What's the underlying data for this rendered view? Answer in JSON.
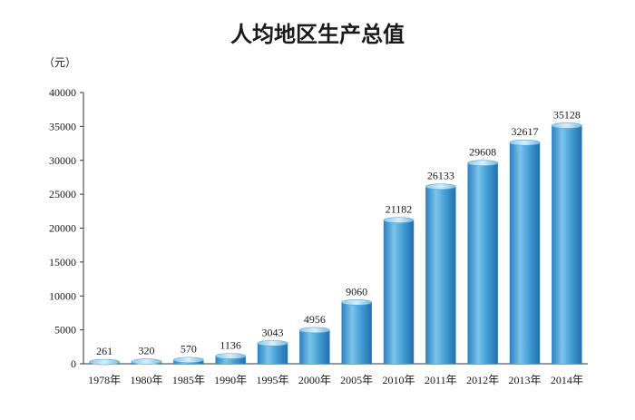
{
  "chart_data": {
    "type": "bar",
    "title": "人均地区生产总值",
    "unit_label": "（元）",
    "categories": [
      "1978年",
      "1980年",
      "1985年",
      "1990年",
      "1995年",
      "2000年",
      "2005年",
      "2010年",
      "2011年",
      "2012年",
      "2013年",
      "2014年"
    ],
    "values": [
      261,
      320,
      570,
      1136,
      3043,
      4956,
      9060,
      21182,
      26133,
      29608,
      32617,
      35128
    ],
    "value_labels": [
      "261",
      "320",
      "570",
      "1136",
      "3043",
      "4956",
      "9060",
      "21182",
      "26133",
      "29608",
      "32617",
      "35128"
    ],
    "ylim": [
      0,
      40000
    ],
    "yticks": [
      0,
      5000,
      10000,
      15000,
      20000,
      25000,
      30000,
      35000,
      40000
    ],
    "ytick_labels": [
      "0",
      "5000",
      "10000",
      "15000",
      "20000",
      "25000",
      "30000",
      "35000",
      "40000"
    ],
    "grid": false,
    "bar_color_top": "#9fd4ee",
    "bar_color_mid": "#4aa3d8",
    "bar_color_dark": "#1f6fae"
  }
}
